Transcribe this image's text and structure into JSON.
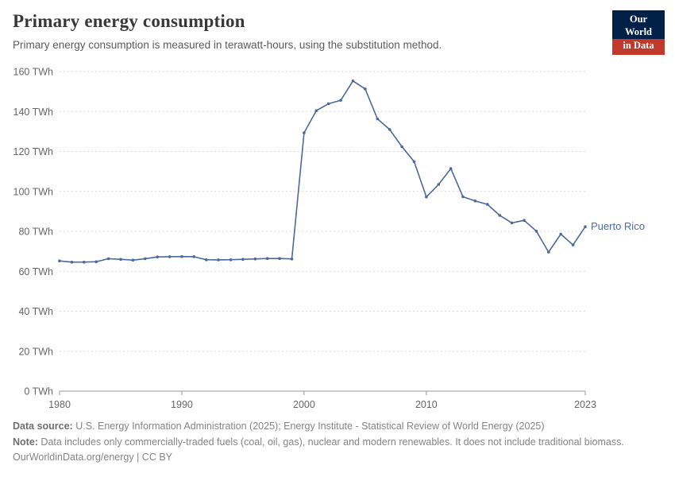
{
  "header": {
    "title": "Primary energy consumption",
    "subtitle": "Primary energy consumption is measured in terawatt-hours, using the substitution method.",
    "logo": {
      "line1": "Our World",
      "line2": "in Data"
    }
  },
  "chart_data": {
    "type": "line",
    "title": "Primary energy consumption",
    "unit": "TWh",
    "ylim": [
      0,
      160
    ],
    "yticks": [
      0,
      20,
      40,
      60,
      80,
      100,
      120,
      140,
      160
    ],
    "xticks": [
      1980,
      1990,
      2000,
      2010,
      2023
    ],
    "grid": "horizontal-dashed",
    "legend_position": "end-of-line-label",
    "x": [
      1980,
      1981,
      1982,
      1983,
      1984,
      1985,
      1986,
      1987,
      1988,
      1989,
      1990,
      1991,
      1992,
      1993,
      1994,
      1995,
      1996,
      1997,
      1998,
      1999,
      2000,
      2001,
      2002,
      2003,
      2004,
      2005,
      2006,
      2007,
      2008,
      2009,
      2010,
      2011,
      2012,
      2013,
      2014,
      2015,
      2016,
      2017,
      2018,
      2019,
      2020,
      2021,
      2022,
      2023
    ],
    "series": [
      {
        "name": "Puerto Rico",
        "color": "#4C6A9C",
        "values": [
          65.2,
          64.6,
          64.6,
          64.8,
          66.3,
          66,
          65.6,
          66.3,
          67.2,
          67.3,
          67.4,
          67.3,
          65.8,
          65.7,
          65.8,
          66,
          66.2,
          66.4,
          66.4,
          66.2,
          129.3,
          140.4,
          143.9,
          145.6,
          155.3,
          151.3,
          136.3,
          131,
          122.4,
          114.9,
          97.2,
          103.5,
          111.4,
          97.3,
          95.2,
          93.5,
          88,
          84.2,
          85.5,
          80.1,
          69.6,
          78.6,
          73.2,
          82.3
        ]
      }
    ]
  },
  "footer": {
    "source_label": "Data source:",
    "source_text": " U.S. Energy Information Administration (2025); Energy Institute - Statistical Review of World Energy (2025)",
    "note_label": "Note:",
    "note_text": " Data includes only commercially-traded fuels (coal, oil, gas), nuclear and modern renewables. It does not include traditional biomass.",
    "license": "OurWorldinData.org/energy | CC BY"
  },
  "colors": {
    "line": "#4C6A9C",
    "grid": "#dadada",
    "axis": "#9a9a9a",
    "tick_label": "#666666",
    "logo_navy": "#002147",
    "logo_red": "#c0392b",
    "muted_text": "#858585"
  }
}
